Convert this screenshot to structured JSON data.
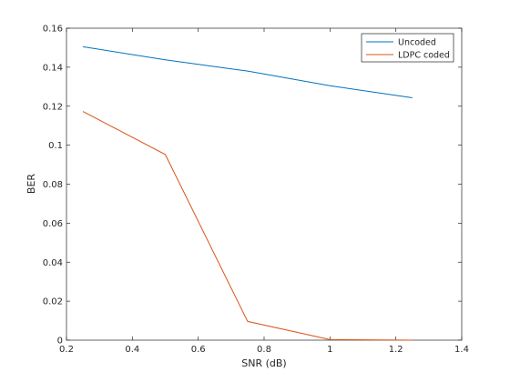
{
  "chart_data": {
    "type": "line",
    "title": "",
    "xlabel": "SNR (dB)",
    "ylabel": "BER",
    "xlim": [
      0.2,
      1.4
    ],
    "ylim": [
      0,
      0.16
    ],
    "xticks": [
      0.2,
      0.4,
      0.6,
      0.8,
      1,
      1.2,
      1.4
    ],
    "xtick_labels": [
      "0.2",
      "0.4",
      "0.6",
      "0.8",
      "1",
      "1.2",
      "1.4"
    ],
    "yticks": [
      0,
      0.02,
      0.04,
      0.06,
      0.08,
      0.1,
      0.12,
      0.14,
      0.16
    ],
    "ytick_labels": [
      "0",
      "0.02",
      "0.04",
      "0.06",
      "0.08",
      "0.1",
      "0.12",
      "0.14",
      "0.16"
    ],
    "grid": false,
    "legend_position": "top-right",
    "x": [
      0.25,
      0.5,
      0.75,
      1.0,
      1.25
    ],
    "series": [
      {
        "name": "Uncoded",
        "color": "#0072BD",
        "values": [
          0.1505,
          0.1438,
          0.138,
          0.1305,
          0.1243
        ]
      },
      {
        "name": "LDPC coded",
        "color": "#D95319",
        "values": [
          0.1173,
          0.0952,
          0.0096,
          0.0003,
          0.0
        ]
      }
    ]
  }
}
